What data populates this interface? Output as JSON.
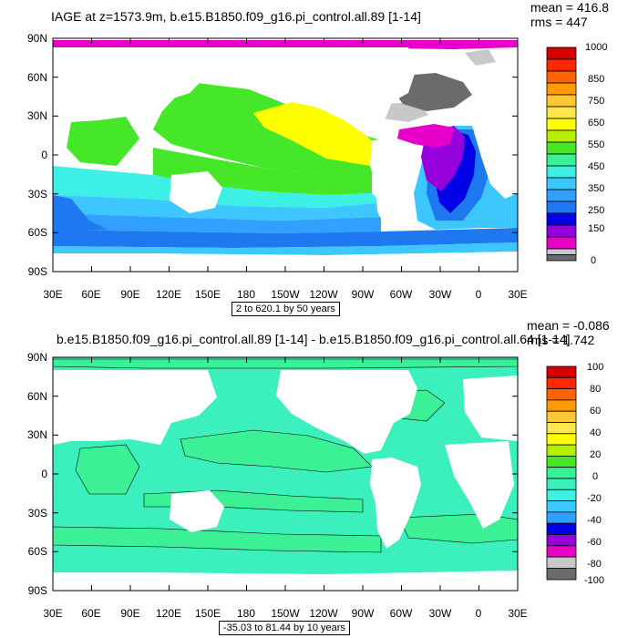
{
  "panels": [
    {
      "title": "IAGE at z=1573.9m, b.e15.B1850.f09_g16.pi_control.all.89 [1-14]",
      "mean": "mean = 416.8",
      "rms": "rms = 447",
      "range_label": "2 to 620.1 by 50 years",
      "colorbar_labels": [
        "1000",
        "850",
        "750",
        "650",
        "550",
        "450",
        "350",
        "250",
        "150",
        "0"
      ]
    },
    {
      "title": "b.e15.B1850.f09_g16.pi_control.all.89 [1-14] - b.e15.B1850.f09_g16.pi_control.all.64 [1-14]",
      "mean": "mean = -0.086",
      "rms": "rms = 1.742",
      "range_label": "-35.03 to 81.44 by 10 years",
      "colorbar_labels": [
        "100",
        "80",
        "60",
        "40",
        "20",
        "0",
        "-20",
        "-40",
        "-60",
        "-80",
        "-100"
      ]
    }
  ],
  "lat_labels": [
    "90N",
    "60N",
    "30N",
    "0",
    "30S",
    "60S",
    "90S"
  ],
  "lon_labels": [
    "30E",
    "60E",
    "90E",
    "120E",
    "150E",
    "180",
    "150W",
    "120W",
    "90W",
    "60W",
    "30W",
    "0",
    "30E"
  ],
  "colors": {
    "age_scale": [
      "#6b6b6b",
      "#c8c8c8",
      "#e600c8",
      "#9600dc",
      "#0000e6",
      "#1e78f0",
      "#32a0ff",
      "#3cc8ff",
      "#3cf0e6",
      "#3cf096",
      "#46e628",
      "#b4f000",
      "#ffff00",
      "#ffc832",
      "#ff9b00",
      "#ff6400",
      "#ff2800",
      "#d20000"
    ],
    "diff_scale": [
      "#6b6b6b",
      "#c8c8c8",
      "#e600c8",
      "#9600dc",
      "#0000e6",
      "#1e78f0",
      "#32a0ff",
      "#3cc8ff",
      "#3cf0e6",
      "#3cf0be",
      "#3cf096",
      "#46e628",
      "#b4f000",
      "#ffff00",
      "#ffc832",
      "#ff9b00",
      "#ff6400",
      "#ff2800",
      "#d20000"
    ]
  }
}
